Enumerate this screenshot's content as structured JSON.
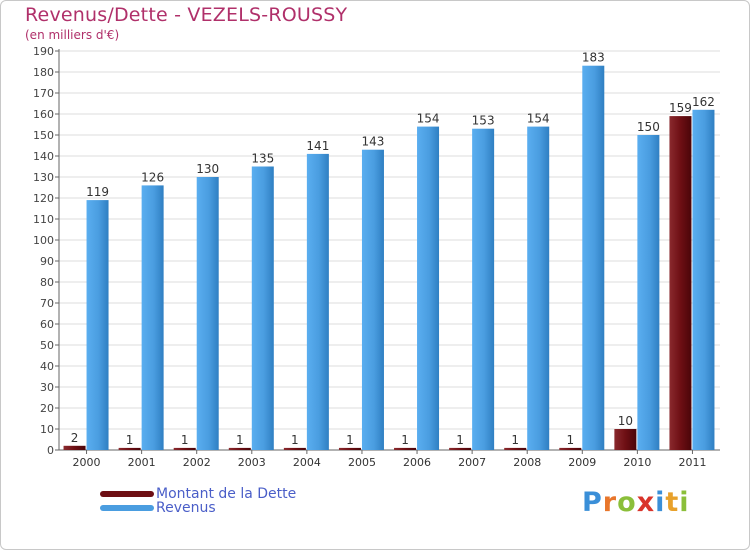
{
  "header": {
    "title": "Revenus/Dette - VEZELS-ROUSSY",
    "subtitle": "(en milliers d'€)"
  },
  "legend": {
    "items": [
      {
        "label": "Montant de la Dette",
        "color": "#6e0f14"
      },
      {
        "label": "Revenus",
        "color": "#4a9de0"
      }
    ]
  },
  "logo": {
    "text": "Proxiti",
    "letters": [
      {
        "char": "P",
        "color": "#3a8fd8"
      },
      {
        "char": "r",
        "color": "#e8762b"
      },
      {
        "char": "o",
        "color": "#8bbf3a"
      },
      {
        "char": "x",
        "color": "#d9342b"
      },
      {
        "char": "i",
        "color": "#3a8fd8"
      },
      {
        "char": "t",
        "color": "#e8a12b"
      },
      {
        "char": "i",
        "color": "#8bbf3a"
      }
    ]
  },
  "chart_data": {
    "type": "bar",
    "title": "Revenus/Dette - VEZELS-ROUSSY",
    "ylabel": "(en milliers d'€)",
    "xlabel": "",
    "ylim": [
      0,
      190
    ],
    "ytick_step": 10,
    "grid": true,
    "legend_position": "bottom-left",
    "categories": [
      "2000",
      "2001",
      "2002",
      "2003",
      "2004",
      "2005",
      "2006",
      "2007",
      "2008",
      "2009",
      "2010",
      "2011"
    ],
    "series": [
      {
        "name": "Montant de la Dette",
        "color": "#6e0f14",
        "values": [
          2,
          1,
          1,
          1,
          1,
          1,
          1,
          1,
          1,
          1,
          10,
          159
        ]
      },
      {
        "name": "Revenus",
        "color": "#4a9de0",
        "values": [
          119,
          126,
          130,
          135,
          141,
          143,
          154,
          153,
          154,
          183,
          150,
          162
        ]
      }
    ]
  }
}
